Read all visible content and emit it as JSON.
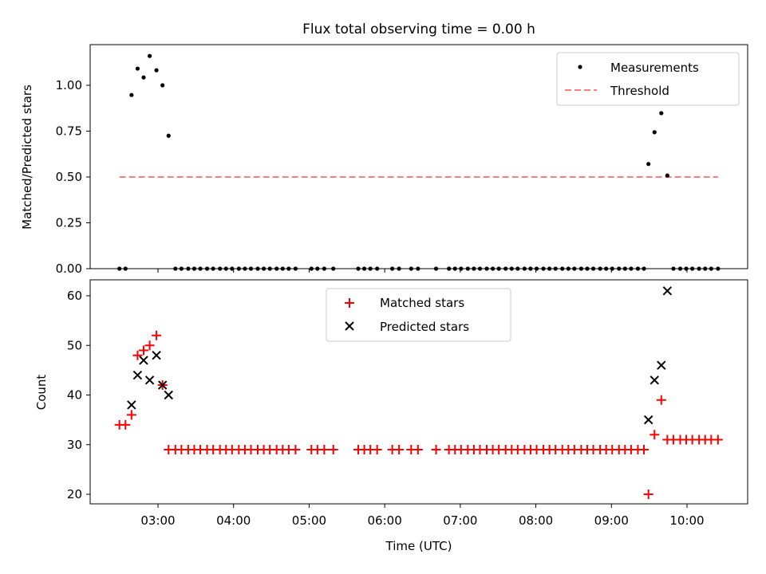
{
  "title": "Flux total observing time = 0.00 h",
  "chart_data": [
    {
      "type": "scatter",
      "ylabel": "Matched/Predicted stars",
      "xlabel": "",
      "xlim": [
        2.1,
        10.8
      ],
      "ylim": [
        0.0,
        1.22
      ],
      "yticks": [
        0.0,
        0.25,
        0.5,
        0.75,
        1.0
      ],
      "ytick_labels": [
        "0.00",
        "0.25",
        "0.50",
        "0.75",
        "1.00"
      ],
      "legend": {
        "position": "top-right",
        "entries": [
          "Measurements",
          "Threshold"
        ]
      },
      "colors": {
        "measurements": "#000000",
        "threshold": "#ff7f7f"
      },
      "series": [
        {
          "name": "Measurements",
          "marker": "dot",
          "points": [
            [
              2.65,
              0.947
            ],
            [
              2.73,
              1.091
            ],
            [
              2.81,
              1.043
            ],
            [
              2.89,
              1.16
            ],
            [
              2.98,
              1.082
            ],
            [
              3.06,
              1.0
            ],
            [
              3.14,
              0.725
            ],
            [
              9.49,
              0.571
            ],
            [
              9.57,
              0.744
            ],
            [
              9.66,
              0.848
            ],
            [
              9.74,
              0.508
            ]
          ],
          "zero_x": [
            2.49,
            2.57,
            3.23,
            3.31,
            3.4,
            3.48,
            3.56,
            3.65,
            3.73,
            3.82,
            3.9,
            3.98,
            4.07,
            4.15,
            4.23,
            4.32,
            4.4,
            4.48,
            4.57,
            4.65,
            4.73,
            4.82,
            5.03,
            5.11,
            5.2,
            5.32,
            5.65,
            5.73,
            5.81,
            5.9,
            6.1,
            6.19,
            6.35,
            6.44,
            6.68,
            6.85,
            6.93,
            7.01,
            7.1,
            7.18,
            7.26,
            7.35,
            7.43,
            7.51,
            7.6,
            7.68,
            7.76,
            7.85,
            7.93,
            8.01,
            8.1,
            8.18,
            8.26,
            8.35,
            8.43,
            8.51,
            8.6,
            8.68,
            8.76,
            8.85,
            8.93,
            9.01,
            9.1,
            9.18,
            9.26,
            9.35,
            9.43,
            9.82,
            9.91,
            9.99,
            10.07,
            10.16,
            10.24,
            10.32,
            10.41
          ]
        },
        {
          "name": "Threshold",
          "style": "dashed",
          "x": [
            2.49,
            10.41
          ],
          "y": [
            0.5,
            0.5
          ]
        }
      ]
    },
    {
      "type": "scatter",
      "ylabel": "Count",
      "xlabel": "Time (UTC)",
      "xlim": [
        2.1,
        10.8
      ],
      "ylim": [
        18,
        63
      ],
      "yticks": [
        20,
        30,
        40,
        50,
        60
      ],
      "ytick_labels": [
        "20",
        "30",
        "40",
        "50",
        "60"
      ],
      "xticks": [
        3,
        4,
        5,
        6,
        7,
        8,
        9,
        10
      ],
      "xtick_labels": [
        "03:00",
        "04:00",
        "05:00",
        "06:00",
        "07:00",
        "08:00",
        "09:00",
        "10:00"
      ],
      "legend": {
        "position": "top-center",
        "entries": [
          "Matched stars",
          "Predicted stars"
        ]
      },
      "colors": {
        "matched": "#ff0000",
        "predicted": "#000000"
      },
      "series": [
        {
          "name": "Matched stars",
          "marker": "+",
          "points": [
            [
              2.49,
              34
            ],
            [
              2.57,
              34
            ],
            [
              2.65,
              36
            ],
            [
              2.73,
              48
            ],
            [
              2.81,
              49
            ],
            [
              2.89,
              50
            ],
            [
              2.98,
              52
            ],
            [
              3.06,
              42
            ],
            [
              9.49,
              20
            ],
            [
              9.57,
              32
            ],
            [
              9.66,
              39
            ]
          ],
          "constant_value": 29,
          "constant_x": [
            3.14,
            3.23,
            3.31,
            3.4,
            3.48,
            3.56,
            3.65,
            3.73,
            3.82,
            3.9,
            3.98,
            4.07,
            4.15,
            4.23,
            4.32,
            4.4,
            4.48,
            4.57,
            4.65,
            4.73,
            4.82,
            5.03,
            5.11,
            5.2,
            5.32,
            5.65,
            5.73,
            5.81,
            5.9,
            6.1,
            6.19,
            6.35,
            6.44,
            6.68,
            6.85,
            6.93,
            7.01,
            7.1,
            7.18,
            7.26,
            7.35,
            7.43,
            7.51,
            7.6,
            7.68,
            7.76,
            7.85,
            7.93,
            8.01,
            8.1,
            8.18,
            8.26,
            8.35,
            8.43,
            8.51,
            8.6,
            8.68,
            8.76,
            8.85,
            8.93,
            9.01,
            9.1,
            9.18,
            9.26,
            9.35,
            9.43
          ],
          "tail_value": 31,
          "tail_x": [
            9.74,
            9.82,
            9.91,
            9.99,
            10.07,
            10.16,
            10.24,
            10.32,
            10.41
          ]
        },
        {
          "name": "Predicted stars",
          "marker": "x",
          "points": [
            [
              2.65,
              38
            ],
            [
              2.73,
              44
            ],
            [
              2.81,
              47
            ],
            [
              2.89,
              43
            ],
            [
              2.98,
              48
            ],
            [
              3.06,
              42
            ],
            [
              3.14,
              40
            ],
            [
              9.49,
              35
            ],
            [
              9.57,
              43
            ],
            [
              9.66,
              46
            ],
            [
              9.74,
              61
            ]
          ]
        }
      ]
    }
  ]
}
